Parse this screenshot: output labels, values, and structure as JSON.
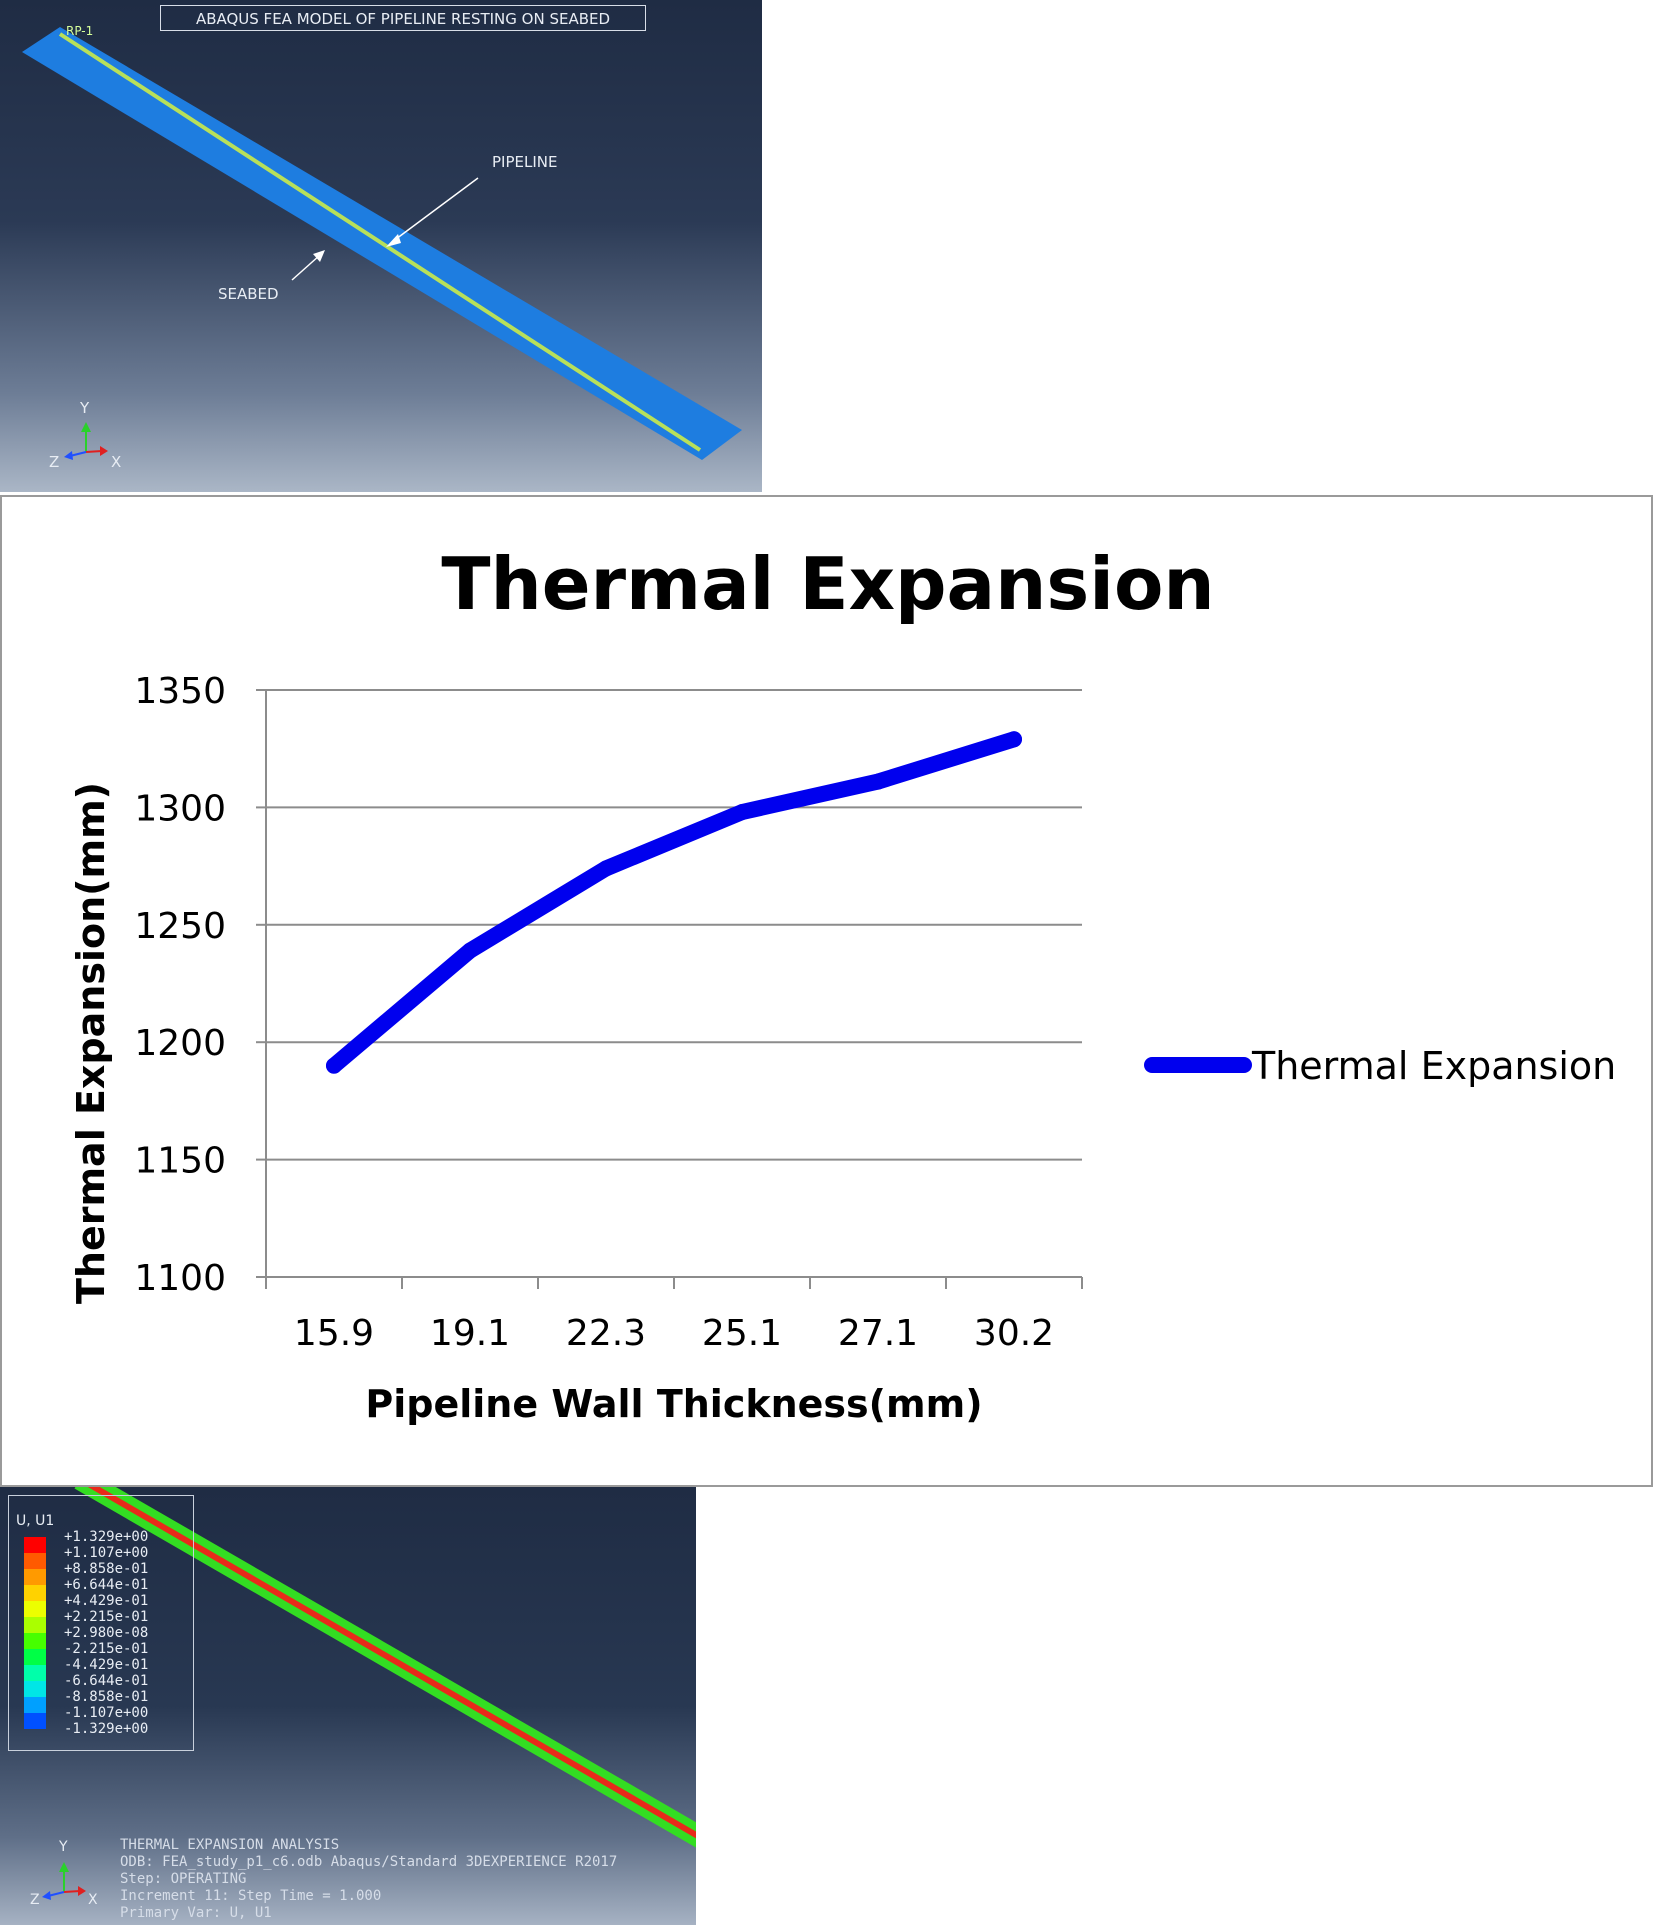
{
  "top_viewport": {
    "title": "ABAQUS FEA MODEL OF PIPELINE RESTING ON SEABED",
    "ref_point": "RP-1",
    "pipeline_label": "PIPELINE",
    "seabed_label": "SEABED",
    "axes": {
      "y": "Y",
      "z": "Z",
      "x": "X"
    },
    "colors": {
      "seabed": "#1e7de0",
      "pipeline": "#b8e05a"
    }
  },
  "chart_data": {
    "type": "line",
    "title": "Thermal Expansion",
    "xlabel": "Pipeline Wall Thickness(mm)",
    "ylabel": "Thermal Expansion(mm)",
    "categories": [
      "15.9",
      "19.1",
      "22.3",
      "25.1",
      "27.1",
      "30.2"
    ],
    "series": [
      {
        "name": "Thermal Expansion",
        "color": "#0000ee",
        "values": [
          1190,
          1239,
          1274,
          1298,
          1311,
          1329
        ]
      }
    ],
    "ylim": [
      1100,
      1350
    ],
    "yticks": [
      "1100",
      "1150",
      "1200",
      "1250",
      "1300",
      "1350"
    ],
    "grid": true,
    "legend_position": "right"
  },
  "bottom_viewport": {
    "legend_title": "U, U1",
    "legend_values": [
      "+1.329e+00",
      "+1.107e+00",
      "+8.858e-01",
      "+6.644e-01",
      "+4.429e-01",
      "+2.215e-01",
      "+2.980e-08",
      "-2.215e-01",
      "-4.429e-01",
      "-6.644e-01",
      "-8.858e-01",
      "-1.107e+00",
      "-1.329e+00"
    ],
    "legend_colors": [
      "#ff0000",
      "#ff5a00",
      "#ff9a00",
      "#ffd200",
      "#ecff00",
      "#aaff00",
      "#46ff00",
      "#00ff46",
      "#00ffaa",
      "#00e6e6",
      "#00a0ff",
      "#0050ff",
      "#0000ff"
    ],
    "info": [
      "THERMAL EXPANSION ANALYSIS",
      "ODB: FEA_study_p1_c6.odb    Abaqus/Standard 3DEXPERIENCE R2017",
      "Step: OPERATING",
      "Increment      11: Step Time =      1.000",
      "Primary Var: U, U1"
    ],
    "axes": {
      "y": "Y",
      "z": "Z",
      "x": "X"
    }
  }
}
